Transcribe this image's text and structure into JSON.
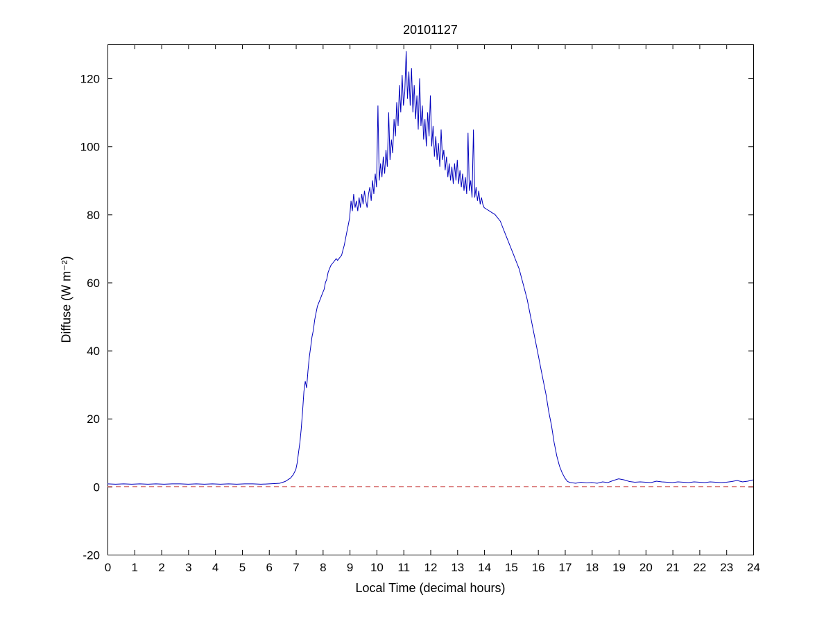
{
  "figure": {
    "title": "20101127",
    "xlabel": "Local Time (decimal hours)",
    "ylabel": "Diffuse (W m⁻²)"
  },
  "colors": {
    "data_line": "#0000bd",
    "reference_line": "#c83232",
    "axis": "#000000",
    "background": "#ffffff"
  },
  "chart_data": {
    "type": "line",
    "title": "20101127",
    "xlabel": "Local Time (decimal hours)",
    "ylabel": "Diffuse (W m⁻²)",
    "xlim": [
      0,
      24
    ],
    "ylim": [
      -20,
      130
    ],
    "xticks": [
      0,
      1,
      2,
      3,
      4,
      5,
      6,
      7,
      8,
      9,
      10,
      11,
      12,
      13,
      14,
      15,
      16,
      17,
      18,
      19,
      20,
      21,
      22,
      23,
      24
    ],
    "yticks": [
      -20,
      0,
      20,
      40,
      60,
      80,
      100,
      120
    ],
    "grid": false,
    "legend": null,
    "series": [
      {
        "name": "diffuse",
        "color": "#0000bd",
        "style": "solid",
        "points": [
          [
            0,
            0.8
          ],
          [
            0.3,
            0.7
          ],
          [
            0.6,
            0.8
          ],
          [
            0.9,
            0.7
          ],
          [
            1.2,
            0.8
          ],
          [
            1.5,
            0.7
          ],
          [
            1.8,
            0.8
          ],
          [
            2.1,
            0.7
          ],
          [
            2.4,
            0.8
          ],
          [
            2.7,
            0.8
          ],
          [
            3,
            0.7
          ],
          [
            3.3,
            0.8
          ],
          [
            3.6,
            0.7
          ],
          [
            3.9,
            0.8
          ],
          [
            4.2,
            0.7
          ],
          [
            4.5,
            0.8
          ],
          [
            4.8,
            0.7
          ],
          [
            5.1,
            0.8
          ],
          [
            5.4,
            0.8
          ],
          [
            5.7,
            0.7
          ],
          [
            6,
            0.8
          ],
          [
            6.2,
            0.9
          ],
          [
            6.4,
            1
          ],
          [
            6.6,
            1.5
          ],
          [
            6.8,
            2.5
          ],
          [
            6.9,
            3.5
          ],
          [
            7,
            5
          ],
          [
            7.05,
            7
          ],
          [
            7.1,
            10
          ],
          [
            7.15,
            13
          ],
          [
            7.2,
            17
          ],
          [
            7.25,
            22
          ],
          [
            7.3,
            28
          ],
          [
            7.35,
            31
          ],
          [
            7.4,
            29
          ],
          [
            7.45,
            34
          ],
          [
            7.5,
            38
          ],
          [
            7.55,
            41
          ],
          [
            7.6,
            44
          ],
          [
            7.65,
            46
          ],
          [
            7.7,
            49
          ],
          [
            7.75,
            51
          ],
          [
            7.8,
            53
          ],
          [
            7.85,
            54
          ],
          [
            7.9,
            55
          ],
          [
            7.95,
            56
          ],
          [
            8,
            57
          ],
          [
            8.05,
            58
          ],
          [
            8.1,
            60
          ],
          [
            8.15,
            61
          ],
          [
            8.2,
            63
          ],
          [
            8.25,
            64
          ],
          [
            8.3,
            65
          ],
          [
            8.35,
            65.5
          ],
          [
            8.4,
            66
          ],
          [
            8.45,
            66.5
          ],
          [
            8.5,
            67
          ],
          [
            8.55,
            66.5
          ],
          [
            8.6,
            67
          ],
          [
            8.65,
            67.5
          ],
          [
            8.7,
            68
          ],
          [
            8.75,
            69.5
          ],
          [
            8.8,
            71
          ],
          [
            8.85,
            73
          ],
          [
            8.9,
            75
          ],
          [
            8.95,
            77
          ],
          [
            9,
            79
          ],
          [
            9.05,
            84
          ],
          [
            9.1,
            81
          ],
          [
            9.15,
            86
          ],
          [
            9.2,
            82
          ],
          [
            9.25,
            84
          ],
          [
            9.3,
            81
          ],
          [
            9.35,
            85
          ],
          [
            9.4,
            82
          ],
          [
            9.45,
            86
          ],
          [
            9.5,
            83
          ],
          [
            9.55,
            87
          ],
          [
            9.6,
            84
          ],
          [
            9.65,
            82
          ],
          [
            9.7,
            86
          ],
          [
            9.75,
            88
          ],
          [
            9.8,
            84
          ],
          [
            9.85,
            90
          ],
          [
            9.9,
            86
          ],
          [
            9.95,
            92
          ],
          [
            10,
            88
          ],
          [
            10.05,
            112
          ],
          [
            10.1,
            90
          ],
          [
            10.15,
            95
          ],
          [
            10.2,
            91
          ],
          [
            10.25,
            97
          ],
          [
            10.3,
            92
          ],
          [
            10.35,
            99
          ],
          [
            10.4,
            94
          ],
          [
            10.45,
            110
          ],
          [
            10.5,
            96
          ],
          [
            10.55,
            102
          ],
          [
            10.6,
            98
          ],
          [
            10.65,
            108
          ],
          [
            10.7,
            103
          ],
          [
            10.75,
            113
          ],
          [
            10.8,
            106
          ],
          [
            10.85,
            118
          ],
          [
            10.9,
            110
          ],
          [
            10.95,
            121
          ],
          [
            11,
            112
          ],
          [
            11.05,
            116
          ],
          [
            11.1,
            128
          ],
          [
            11.15,
            114
          ],
          [
            11.2,
            122
          ],
          [
            11.25,
            112
          ],
          [
            11.3,
            123
          ],
          [
            11.35,
            110
          ],
          [
            11.4,
            118
          ],
          [
            11.45,
            108
          ],
          [
            11.5,
            115
          ],
          [
            11.55,
            105
          ],
          [
            11.6,
            120
          ],
          [
            11.65,
            106
          ],
          [
            11.7,
            112
          ],
          [
            11.75,
            102
          ],
          [
            11.8,
            108
          ],
          [
            11.85,
            100
          ],
          [
            11.9,
            110
          ],
          [
            11.95,
            103
          ],
          [
            12,
            115
          ],
          [
            12.05,
            100
          ],
          [
            12.1,
            106
          ],
          [
            12.15,
            97
          ],
          [
            12.2,
            103
          ],
          [
            12.25,
            96
          ],
          [
            12.3,
            101
          ],
          [
            12.35,
            94
          ],
          [
            12.4,
            105
          ],
          [
            12.45,
            96
          ],
          [
            12.5,
            99
          ],
          [
            12.55,
            93
          ],
          [
            12.6,
            97
          ],
          [
            12.65,
            91
          ],
          [
            12.7,
            95
          ],
          [
            12.75,
            90
          ],
          [
            12.8,
            94
          ],
          [
            12.85,
            89
          ],
          [
            12.9,
            95
          ],
          [
            12.95,
            90
          ],
          [
            13,
            96
          ],
          [
            13.05,
            89
          ],
          [
            13.1,
            93
          ],
          [
            13.15,
            88
          ],
          [
            13.2,
            92
          ],
          [
            13.25,
            87
          ],
          [
            13.3,
            91
          ],
          [
            13.35,
            86
          ],
          [
            13.4,
            104
          ],
          [
            13.45,
            87
          ],
          [
            13.5,
            90
          ],
          [
            13.55,
            85
          ],
          [
            13.6,
            105
          ],
          [
            13.65,
            85
          ],
          [
            13.7,
            88
          ],
          [
            13.75,
            84
          ],
          [
            13.8,
            87
          ],
          [
            13.85,
            83
          ],
          [
            13.9,
            85
          ],
          [
            13.95,
            83
          ],
          [
            14,
            82
          ],
          [
            14.1,
            81.5
          ],
          [
            14.2,
            81
          ],
          [
            14.3,
            80.5
          ],
          [
            14.4,
            80
          ],
          [
            14.5,
            79
          ],
          [
            14.6,
            78
          ],
          [
            14.7,
            76
          ],
          [
            14.8,
            74
          ],
          [
            14.9,
            72
          ],
          [
            15,
            70
          ],
          [
            15.1,
            68
          ],
          [
            15.2,
            66
          ],
          [
            15.3,
            64
          ],
          [
            15.4,
            61
          ],
          [
            15.5,
            58
          ],
          [
            15.6,
            55
          ],
          [
            15.7,
            51
          ],
          [
            15.8,
            47
          ],
          [
            15.9,
            43
          ],
          [
            16,
            39
          ],
          [
            16.1,
            35
          ],
          [
            16.2,
            31
          ],
          [
            16.3,
            27
          ],
          [
            16.4,
            22
          ],
          [
            16.5,
            18
          ],
          [
            16.6,
            13
          ],
          [
            16.7,
            9
          ],
          [
            16.8,
            6
          ],
          [
            16.9,
            4
          ],
          [
            17,
            2.5
          ],
          [
            17.1,
            1.5
          ],
          [
            17.2,
            1.2
          ],
          [
            17.4,
            1
          ],
          [
            17.6,
            1.3
          ],
          [
            17.8,
            1.1
          ],
          [
            18,
            1.2
          ],
          [
            18.2,
            1
          ],
          [
            18.4,
            1.4
          ],
          [
            18.6,
            1.2
          ],
          [
            18.8,
            1.8
          ],
          [
            19,
            2.3
          ],
          [
            19.2,
            2
          ],
          [
            19.4,
            1.5
          ],
          [
            19.6,
            1.3
          ],
          [
            19.8,
            1.4
          ],
          [
            20,
            1.3
          ],
          [
            20.2,
            1.2
          ],
          [
            20.4,
            1.6
          ],
          [
            20.6,
            1.4
          ],
          [
            20.8,
            1.3
          ],
          [
            21,
            1.2
          ],
          [
            21.2,
            1.4
          ],
          [
            21.4,
            1.3
          ],
          [
            21.6,
            1.2
          ],
          [
            21.8,
            1.4
          ],
          [
            22,
            1.3
          ],
          [
            22.2,
            1.2
          ],
          [
            22.4,
            1.4
          ],
          [
            22.6,
            1.3
          ],
          [
            22.8,
            1.2
          ],
          [
            23,
            1.3
          ],
          [
            23.2,
            1.5
          ],
          [
            23.4,
            1.8
          ],
          [
            23.6,
            1.4
          ],
          [
            23.8,
            1.6
          ],
          [
            24,
            2
          ]
        ]
      },
      {
        "name": "zero-reference",
        "color": "#c83232",
        "style": "dashed",
        "points": [
          [
            0,
            0
          ],
          [
            24,
            0
          ]
        ]
      }
    ]
  }
}
